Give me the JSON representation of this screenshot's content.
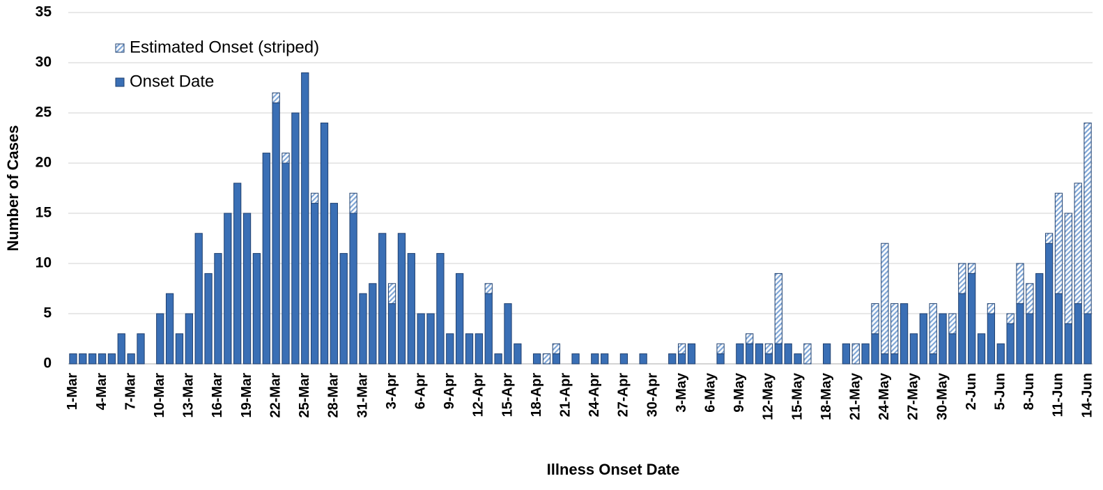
{
  "chart_data": {
    "type": "bar",
    "stacked": true,
    "x_label": "Illness Onset Date",
    "y_label": "Number of Cases",
    "categories": [
      "1-Mar",
      null,
      null,
      "4-Mar",
      null,
      null,
      "7-Mar",
      null,
      null,
      "10-Mar",
      null,
      null,
      "13-Mar",
      null,
      null,
      "16-Mar",
      null,
      null,
      "19-Mar",
      null,
      null,
      "22-Mar",
      null,
      null,
      "25-Mar",
      null,
      null,
      "28-Mar",
      null,
      null,
      "31-Mar",
      null,
      null,
      "3-Apr",
      null,
      null,
      "6-Apr",
      null,
      null,
      "9-Apr",
      null,
      null,
      "12-Apr",
      null,
      null,
      "15-Apr",
      null,
      null,
      "18-Apr",
      null,
      null,
      "21-Apr",
      null,
      null,
      "24-Apr",
      null,
      null,
      "27-Apr",
      null,
      null,
      "30-Apr",
      null,
      null,
      "3-May",
      null,
      null,
      "6-May",
      null,
      null,
      "9-May",
      null,
      null,
      "12-May",
      null,
      null,
      "15-May",
      null,
      null,
      "18-May",
      null,
      null,
      "21-May",
      null,
      null,
      "24-May",
      null,
      null,
      "27-May",
      null,
      null,
      "30-May",
      null,
      null,
      "2-Jun",
      null,
      null,
      "5-Jun",
      null,
      null,
      "8-Jun",
      null,
      null,
      "11-Jun",
      null,
      null,
      "14-Jun"
    ],
    "series": [
      {
        "name": "Onset Date",
        "color": "#3a6fb5",
        "hatch": false,
        "values": [
          1,
          1,
          1,
          1,
          1,
          3,
          1,
          3,
          0,
          5,
          7,
          3,
          5,
          13,
          9,
          11,
          15,
          18,
          15,
          11,
          21,
          26,
          20,
          25,
          29,
          16,
          24,
          16,
          11,
          15,
          7,
          8,
          13,
          6,
          13,
          11,
          5,
          5,
          11,
          3,
          9,
          3,
          3,
          7,
          1,
          6,
          2,
          0,
          1,
          0,
          1,
          0,
          1,
          0,
          1,
          1,
          0,
          1,
          0,
          1,
          0,
          0,
          1,
          1,
          2,
          0,
          0,
          1,
          0,
          2,
          2,
          2,
          1,
          2,
          2,
          1,
          0,
          0,
          2,
          0,
          2,
          0,
          2,
          3,
          1,
          1,
          6,
          3,
          5,
          1,
          5,
          3,
          7,
          9,
          3,
          5,
          2,
          4,
          6,
          5,
          9,
          12,
          7,
          4,
          6,
          5
        ]
      },
      {
        "name": "Estimated Onset (striped)",
        "color": "#3a6fb5",
        "hatch": true,
        "values": [
          0,
          0,
          0,
          0,
          0,
          0,
          0,
          0,
          0,
          0,
          0,
          0,
          0,
          0,
          0,
          0,
          0,
          0,
          0,
          0,
          0,
          1,
          1,
          0,
          0,
          1,
          0,
          0,
          0,
          2,
          0,
          0,
          0,
          2,
          0,
          0,
          0,
          0,
          0,
          0,
          0,
          0,
          0,
          1,
          0,
          0,
          0,
          0,
          0,
          1,
          1,
          0,
          0,
          0,
          0,
          0,
          0,
          0,
          0,
          0,
          0,
          0,
          0,
          1,
          0,
          0,
          0,
          1,
          0,
          0,
          1,
          0,
          1,
          7,
          0,
          0,
          2,
          0,
          0,
          0,
          0,
          2,
          0,
          3,
          11,
          5,
          0,
          0,
          0,
          5,
          0,
          2,
          3,
          1,
          0,
          1,
          0,
          1,
          4,
          3,
          0,
          1,
          10,
          11,
          12,
          19
        ]
      }
    ],
    "ylim": [
      0,
      35
    ],
    "yticks": [
      0,
      5,
      10,
      15,
      20,
      25,
      30,
      35
    ],
    "grid": true,
    "legend": "upper left"
  }
}
